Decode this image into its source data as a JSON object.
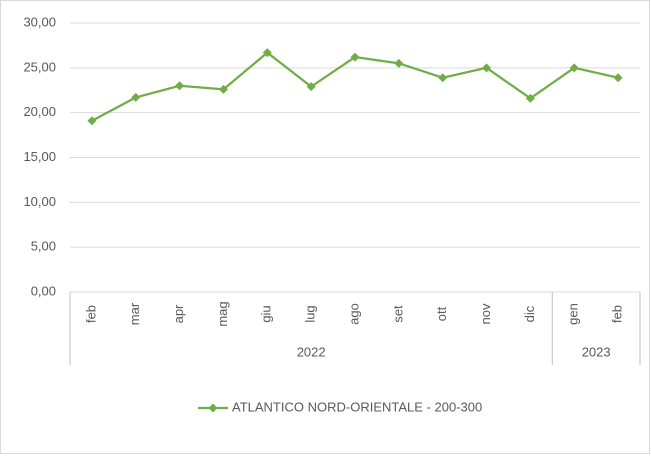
{
  "chart_data": {
    "type": "line",
    "categories": [
      "feb",
      "mar",
      "apr",
      "mag",
      "giu",
      "lug",
      "ago",
      "set",
      "ott",
      "nov",
      "dic",
      "gen",
      "feb"
    ],
    "x_groups": [
      {
        "label": "2022",
        "span": 11
      },
      {
        "label": "2023",
        "span": 2
      }
    ],
    "series": [
      {
        "name": "ATLANTICO NORD-ORIENTALE - 200-300",
        "color": "#70ad47",
        "values": [
          19.1,
          21.7,
          23.0,
          22.6,
          26.7,
          22.9,
          26.2,
          25.5,
          23.9,
          25.0,
          21.6,
          25.0,
          23.9
        ]
      }
    ],
    "ylim": [
      0,
      30
    ],
    "yticks": [
      {
        "value": 0,
        "label": "0,00"
      },
      {
        "value": 5,
        "label": "5,00"
      },
      {
        "value": 10,
        "label": "10,00"
      },
      {
        "value": 15,
        "label": "15,00"
      },
      {
        "value": 20,
        "label": "20,00"
      },
      {
        "value": 25,
        "label": "25,00"
      },
      {
        "value": 30,
        "label": "30,00"
      }
    ],
    "grid": true,
    "legend": "bottom"
  }
}
